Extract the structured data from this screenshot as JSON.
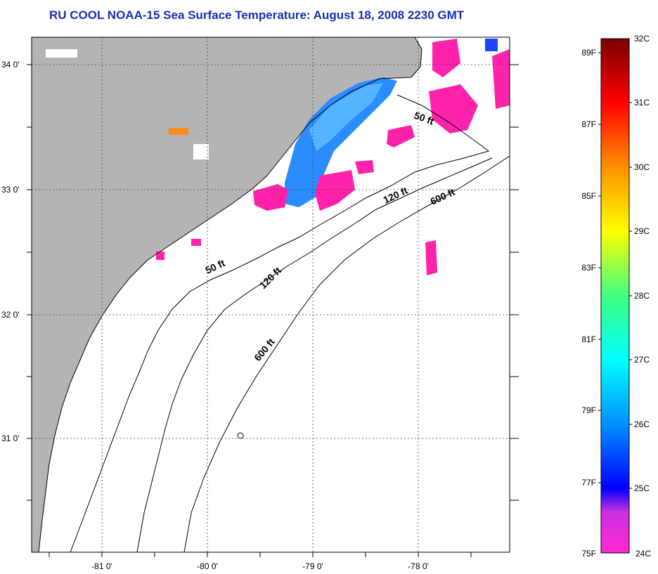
{
  "title": "RU COOL  NOAA-15  Sea Surface Temperature:  August 18, 2008 2230 GMT",
  "map": {
    "lat_labels": [
      "34 0'",
      "33 0'",
      "32 0'",
      "31 0'"
    ],
    "lon_labels": [
      "-81 0'",
      "-80 0'",
      "-79 0'",
      "-78 0'"
    ],
    "contour_labels": [
      "50 ft",
      "120 ft",
      "600 ft",
      "50 ft",
      "120 ft",
      "600 ft"
    ],
    "colors": {
      "land": "#b4b4b4",
      "ocean": "#ffffff",
      "cloud_mask": "#ff22aa",
      "cool_water": "#2a8cff"
    }
  },
  "colorbar": {
    "celsius_labels": [
      "32C",
      "31C",
      "30C",
      "29C",
      "28C",
      "27C",
      "26C",
      "25C",
      "24C"
    ],
    "fahrenheit_labels": [
      "89F",
      "87F",
      "85F",
      "83F",
      "81F",
      "79F",
      "77F",
      "75F"
    ]
  }
}
